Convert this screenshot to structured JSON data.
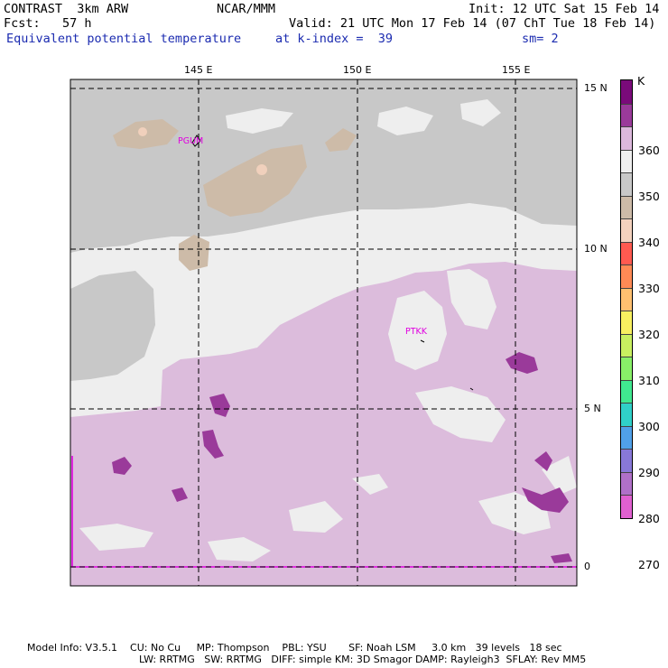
{
  "header": {
    "line1_left": "CONTRAST  3km ARW",
    "line1_mid": "NCAR/MMM",
    "line1_right": "Init: 12 UTC Sat 15 Feb 14",
    "line2_left": "Fcst:   57 h",
    "line2_right": "Valid: 21 UTC Mon 17 Feb 14 (07 ChT Tue 18 Feb 14)",
    "line3_left": "Equivalent potential temperature",
    "line3_mid": "at k-index =  39",
    "line3_right": "sm= 2"
  },
  "axes": {
    "lon_labels": [
      "145 E",
      "150 E",
      "155 E"
    ],
    "lat_labels": [
      "15 N",
      "10 N",
      "5 N",
      "0"
    ]
  },
  "stations": [
    "PGUM",
    "PTKK"
  ],
  "legend": {
    "unit": "K",
    "labels": [
      "360",
      "350",
      "340",
      "330",
      "320",
      "310",
      "300",
      "290",
      "280",
      "270"
    ],
    "colors": [
      "#7a0a7a",
      "#9a3a9a",
      "#dcb8dc",
      "#efefef",
      "#c8c8c8",
      "#cdbba8",
      "#f4d2be",
      "#ff5a50",
      "#ff8a55",
      "#ffc070",
      "#f8f060",
      "#c8f060",
      "#88f068",
      "#40e890",
      "#30d0c8",
      "#50a0e8",
      "#8878d8",
      "#b070c8",
      "#e060d0"
    ]
  },
  "footer": {
    "line1": "Model Info: V3.5.1    CU: No Cu     MP: Thompson    PBL: YSU       SF: Noah LSM     3.0 km   39 levels   18 sec",
    "line2": "LW: RRTMG   SW: RRTMG   DIFF: simple KM: 3D Smagor DAMP: Rayleigh3  SFLAY: Rev MM5"
  }
}
